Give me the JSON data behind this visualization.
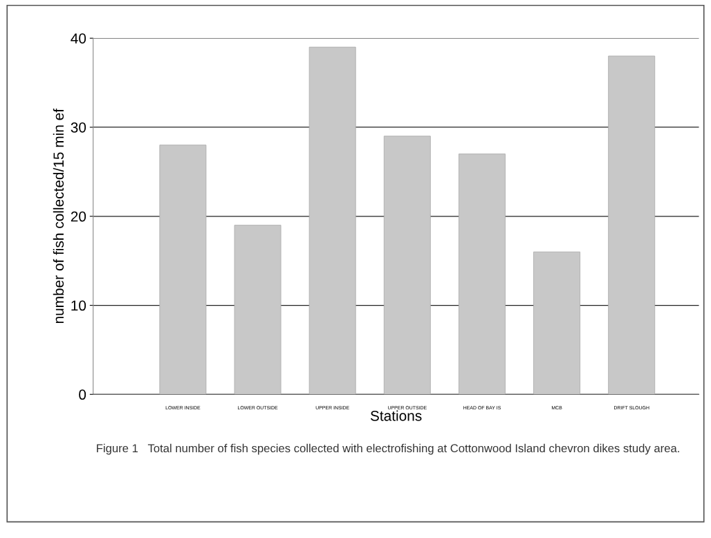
{
  "chart_data": {
    "type": "bar",
    "categories": [
      "LOWER INSIDE",
      "LOWER OUTSIDE",
      "UPPER INSIDE",
      "UPPER OUTSIDE",
      "HEAD OF BAY IS",
      "MCB",
      "DRIFT SLOUGH"
    ],
    "values": [
      28,
      19,
      39,
      29,
      27,
      16,
      38
    ],
    "color": "#c8c8c8",
    "xlabel": "Stations",
    "ylabel": "number of fish collected/15 min ef",
    "ylim": [
      0,
      40
    ],
    "yticks": [
      0,
      10,
      20,
      30,
      40
    ],
    "grid": "y",
    "annotations": [
      "Figure 1   Total number of fish species collected with electrofishing at Cottonwood Island chevron dikes study area."
    ]
  }
}
